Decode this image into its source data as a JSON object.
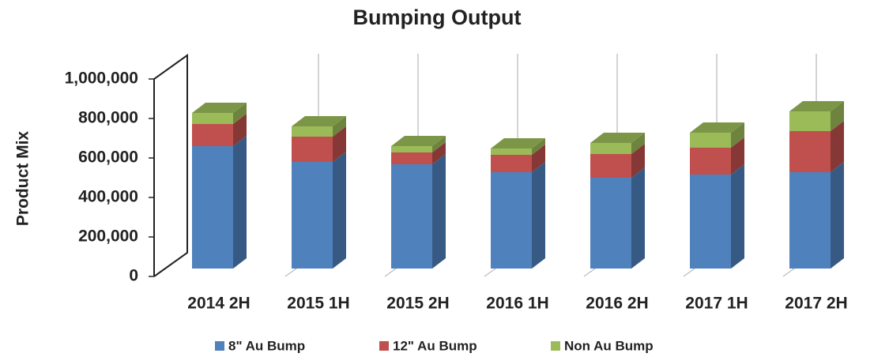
{
  "chart_data": {
    "type": "bar3d_stacked",
    "title": "Bumping Output",
    "y_label": "Product Mix",
    "categories": [
      "2014 2H",
      "2015 1H",
      "2015 2H",
      "2016 1H",
      "2016 2H",
      "2017 1H",
      "2017 2H"
    ],
    "series": [
      {
        "name": "8\" Au Bump",
        "color": "#4f81bd",
        "values": [
          620000,
          540000,
          528000,
          488000,
          460000,
          476000,
          488000
        ]
      },
      {
        "name": "12\" Au Bump",
        "color": "#c0504d",
        "values": [
          112000,
          128000,
          60000,
          88000,
          120000,
          136000,
          208000
        ]
      },
      {
        "name": "Non Au Bump",
        "color": "#9bbb59",
        "values": [
          56000,
          52000,
          32000,
          32000,
          56000,
          76000,
          100000
        ]
      }
    ],
    "ylim": [
      0,
      1000000
    ],
    "yticks": [
      0,
      {
        "value": 200000,
        "label": "200,000"
      },
      {
        "value": 400000,
        "label": "400,000"
      },
      {
        "value": 600000,
        "label": "600,000"
      },
      {
        "value": 800000,
        "label": "800,000"
      },
      {
        "value": 1000000,
        "label": "1,000,000"
      }
    ]
  }
}
